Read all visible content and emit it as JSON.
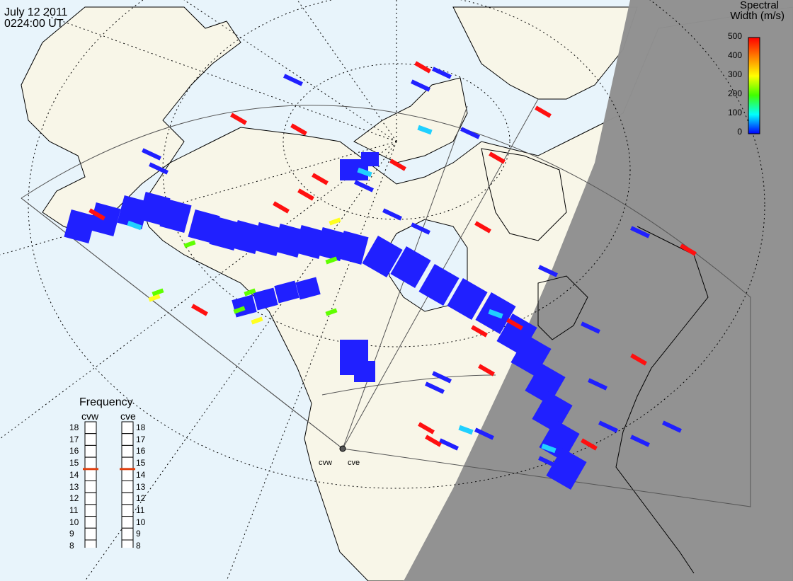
{
  "header": {
    "date": "July 12 2011",
    "time": "0224:00 UT"
  },
  "colorbar": {
    "title_line1": "Spectral",
    "title_line2": "Width (m/s)",
    "ticks": [
      "500",
      "400",
      "300",
      "200",
      "100",
      "0"
    ],
    "colors": [
      "#ff0000",
      "#ff8000",
      "#ffff00",
      "#40ff00",
      "#00ffff",
      "#0000ff"
    ]
  },
  "frequency": {
    "title": "Frequency",
    "radars": [
      "cvw",
      "cve"
    ],
    "scale": [
      "18",
      "17",
      "16",
      "15",
      "14",
      "13",
      "12",
      "11",
      "10",
      "9",
      "8"
    ],
    "selected_mhz": [
      15,
      15
    ],
    "marker_color": "#e04010"
  },
  "radar_sites": {
    "west_label": "cvw",
    "east_label": "cve"
  },
  "map": {
    "ocean_color": "#e8f4fb",
    "land_color": "#f8f6e8",
    "night_color": "#909090",
    "echo_color": "#2020ff"
  }
}
